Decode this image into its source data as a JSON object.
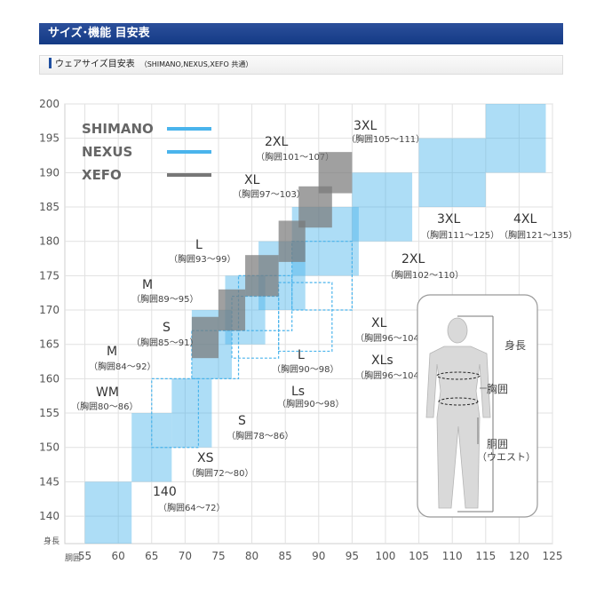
{
  "header": {
    "title": "サイズ･機能 目安表"
  },
  "section": {
    "title": "ウェアサイズ目安表",
    "subtitle": "（SHIMANO,NEXUS,XEFO 共通）"
  },
  "colors": {
    "shimano": "#4ab4ec",
    "nexus": "#4ab4ec",
    "xefo": "#777777",
    "header": "#1a3f8c"
  },
  "chart_data": {
    "type": "heatmap",
    "xlabel": "胴囲",
    "ylabel": "身長",
    "xlim": [
      52,
      125
    ],
    "ylim": [
      136,
      200
    ],
    "x_ticks": [
      "55",
      "60",
      "65",
      "70",
      "75",
      "80",
      "85",
      "90",
      "95",
      "100",
      "105",
      "110",
      "115",
      "120",
      "125"
    ],
    "y_ticks": [
      "140",
      "145",
      "150",
      "155",
      "160",
      "165",
      "170",
      "175",
      "180",
      "185",
      "190",
      "195",
      "200"
    ],
    "legend": [
      "SHIMANO",
      "NEXUS",
      "XEFO"
    ],
    "legend_position": "top-left",
    "grid": true,
    "series": [
      {
        "name": "SHIMANO",
        "style": "solid-blue",
        "boxes": [
          {
            "size": "140",
            "chest": "（胸囲64～72）",
            "x": [
              55,
              62
            ],
            "y": [
              136,
              145
            ]
          },
          {
            "size": "XS",
            "chest": "（胸囲72～80）",
            "x": [
              62,
              68
            ],
            "y": [
              145,
              155
            ]
          },
          {
            "size": "S",
            "chest": "（胸囲78～86）",
            "x": [
              68,
              74
            ],
            "y": [
              150,
              160
            ]
          },
          {
            "size": "M",
            "chest": "",
            "x": [
              71,
              77
            ],
            "y": [
              160,
              170
            ]
          },
          {
            "size": "L",
            "chest": "",
            "x": [
              76,
              82
            ],
            "y": [
              165,
              175
            ]
          },
          {
            "size": "XL",
            "chest": "",
            "x": [
              81,
              88
            ],
            "y": [
              170,
              180
            ]
          },
          {
            "size": "2XL",
            "chest": "（胸囲102～110）",
            "x": [
              86,
              96
            ],
            "y": [
              175,
              185
            ]
          },
          {
            "size": "2XL",
            "chest": "",
            "x": [
              95,
              104
            ],
            "y": [
              180,
              190
            ]
          },
          {
            "size": "3XL",
            "chest": "（胸囲111～125）",
            "x": [
              105,
              115
            ],
            "y": [
              185,
              195
            ]
          },
          {
            "size": "4XL",
            "chest": "（胸囲121～135）",
            "x": [
              115,
              124
            ],
            "y": [
              190,
              200
            ]
          }
        ]
      },
      {
        "name": "NEXUS",
        "style": "dashed",
        "boxes": [
          {
            "size": "WM",
            "chest": "（胸囲80～86）",
            "x": [
              65,
              72
            ],
            "y": [
              150,
              160
            ]
          },
          {
            "size": "M",
            "chest": "（胸囲84～92）",
            "x": [
              71,
              78
            ],
            "y": [
              160,
              167
            ]
          },
          {
            "size": "L",
            "chest": "（胸囲90～98）",
            "x": [
              78,
              86
            ],
            "y": [
              167,
              175
            ]
          },
          {
            "size": "Ls",
            "chest": "（胸囲90～98）",
            "x": [
              77,
              84
            ],
            "y": [
              163,
              172
            ]
          },
          {
            "size": "XL",
            "chest": "（胸囲96～104）",
            "x": [
              86,
              95
            ],
            "y": [
              170,
              180
            ]
          },
          {
            "size": "XLs",
            "chest": "（胸囲96～104）",
            "x": [
              84,
              92
            ],
            "y": [
              164,
              174
            ]
          }
        ]
      },
      {
        "name": "XEFO",
        "style": "solid-gray",
        "boxes": [
          {
            "size": "S",
            "chest": "（胸囲85～91）",
            "x": [
              71,
              75
            ],
            "y": [
              163,
              169
            ]
          },
          {
            "size": "M",
            "chest": "（胸囲89～95）",
            "x": [
              75,
              79
            ],
            "y": [
              167,
              173
            ]
          },
          {
            "size": "L",
            "chest": "（胸囲93～99）",
            "x": [
              79,
              84
            ],
            "y": [
              172,
              178
            ]
          },
          {
            "size": "XL",
            "chest": "（胸囲97～103）",
            "x": [
              84,
              88
            ],
            "y": [
              177,
              183
            ]
          },
          {
            "size": "2XL",
            "chest": "（胸囲101～107）",
            "x": [
              87,
              92
            ],
            "y": [
              182,
              188
            ]
          },
          {
            "size": "3XL",
            "chest": "（胸囲105～111）",
            "x": [
              90,
              95
            ],
            "y": [
              187,
              193
            ]
          }
        ]
      }
    ],
    "body_diagram": {
      "height": "身長",
      "chest": "胸囲",
      "waist": "胴囲",
      "waist_note": "（ウエスト）"
    }
  }
}
